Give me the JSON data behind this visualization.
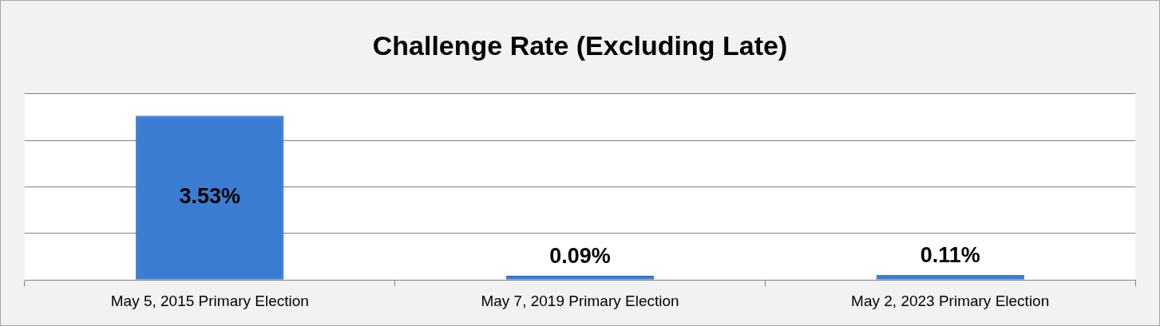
{
  "chart_data": {
    "type": "bar",
    "title": "Challenge Rate (Excluding Late)",
    "categories": [
      "May 5, 2015 Primary Election",
      "May 7, 2019 Primary Election",
      "May 2, 2023 Primary Election"
    ],
    "values": [
      3.53,
      0.09,
      0.11
    ],
    "value_labels": [
      "3.53%",
      "0.09%",
      "0.11%"
    ],
    "color": "#3b7dd2",
    "ylim": [
      0,
      4
    ],
    "yticks": [
      {
        "value": 0,
        "label": null
      },
      {
        "value": 1,
        "label": null
      },
      {
        "value": 2,
        "label": null
      },
      {
        "value": 3,
        "label": null
      },
      {
        "value": 4,
        "label": null
      }
    ],
    "grid": "y",
    "legend": false
  }
}
